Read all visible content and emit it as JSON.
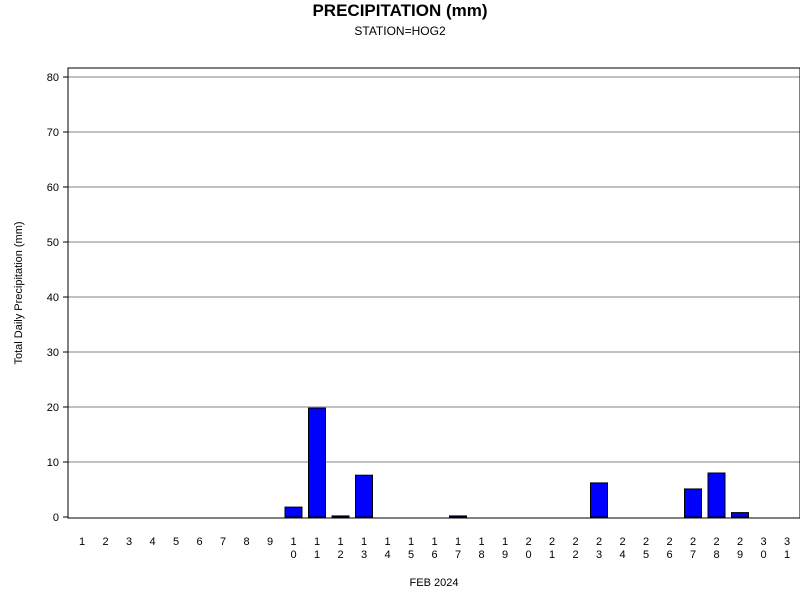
{
  "chart_data": {
    "type": "bar",
    "title": "PRECIPITATION (mm)",
    "subtitle": "STATION=HOG2",
    "xlabel": "FEB 2024",
    "ylabel": "Total Daily Precipitation (mm)",
    "ylim": [
      0,
      80
    ],
    "yticks": [
      0,
      10,
      20,
      30,
      40,
      50,
      60,
      70,
      80
    ],
    "grid": true,
    "bar_color": "#0000ff",
    "categories": [
      "1",
      "2",
      "3",
      "4",
      "5",
      "6",
      "7",
      "8",
      "9",
      "10",
      "11",
      "12",
      "13",
      "14",
      "15",
      "16",
      "17",
      "18",
      "19",
      "20",
      "21",
      "22",
      "23",
      "24",
      "25",
      "26",
      "27",
      "28",
      "29",
      "30",
      "31"
    ],
    "values": [
      0,
      0,
      0,
      0,
      0,
      0,
      0,
      0,
      0,
      1.8,
      19.8,
      0.2,
      7.6,
      0,
      0,
      0,
      0.2,
      0,
      0,
      0,
      0,
      0,
      6.2,
      0,
      0,
      0,
      5.1,
      8.0,
      0.8,
      0,
      0
    ]
  }
}
